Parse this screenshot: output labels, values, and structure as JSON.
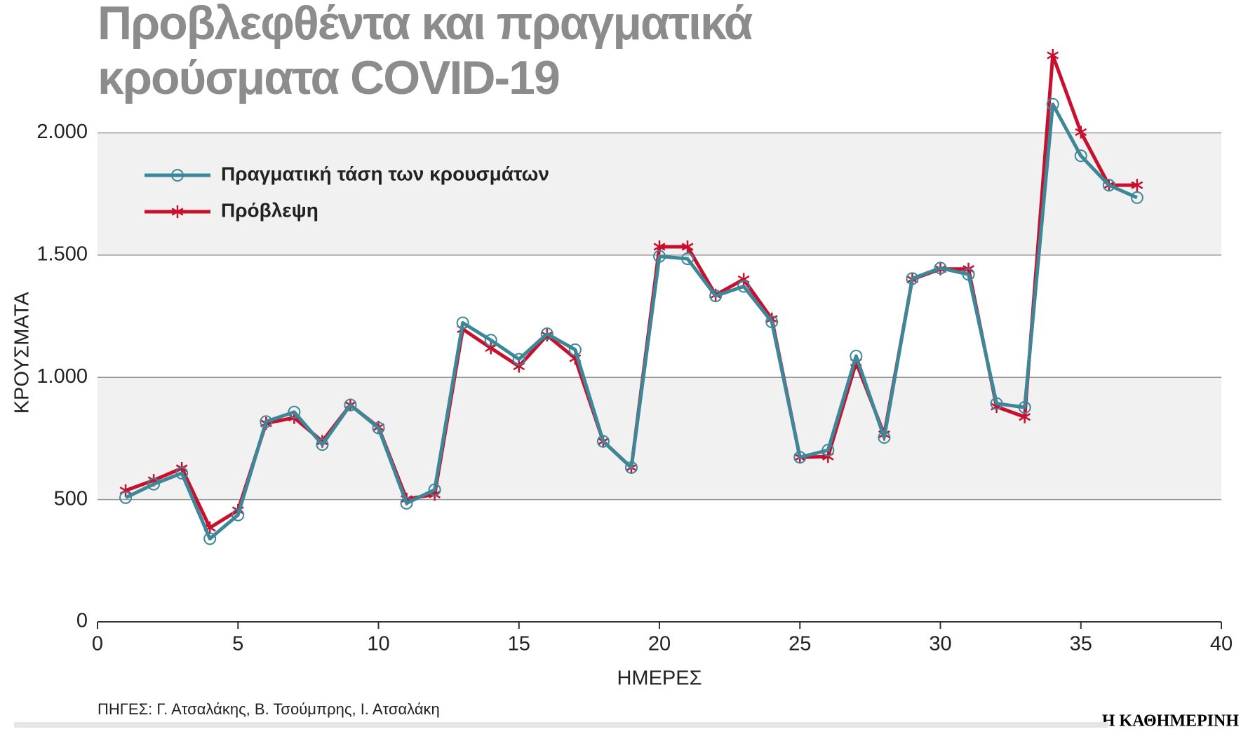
{
  "chart_data": {
    "type": "line",
    "title": "Προβλεφθέντα και πραγματικά κρούσματα COVID-19",
    "x_label": "ΗΜΕΡΕΣ",
    "y_label": "ΚΡΟΥΣΜΑΤΑ",
    "source": "ΠΗΓΕΣ: Γ. Ατσαλάκης, Β. Τσούμπρης, Ι. Ατσαλάκη",
    "brand": "Η ΚΑΘΗΜΕΡΙΝΗ",
    "x": [
      1,
      2,
      3,
      4,
      5,
      6,
      7,
      8,
      9,
      10,
      11,
      12,
      13,
      14,
      15,
      16,
      17,
      18,
      19,
      20,
      21,
      22,
      23,
      24,
      25,
      26,
      27,
      28,
      29,
      30,
      31,
      32,
      33,
      34,
      35,
      36,
      37
    ],
    "series": [
      {
        "name": "Πραγματική τάση των κρουσμάτων",
        "color": "#3d8799",
        "marker": "circle",
        "values": [
          508,
          563,
          608,
          340,
          437,
          819,
          858,
          725,
          887,
          793,
          485,
          540,
          1223,
          1152,
          1074,
          1178,
          1113,
          738,
          631,
          1495,
          1485,
          1333,
          1372,
          1227,
          673,
          702,
          1087,
          754,
          1404,
          1447,
          1421,
          893,
          877,
          2117,
          1906,
          1786,
          1735
        ]
      },
      {
        "name": "Πρόβλεψη",
        "color": "#c8102e",
        "marker": "star",
        "values": [
          537,
          579,
          628,
          385,
          456,
          812,
          835,
          738,
          887,
          796,
          502,
          521,
          1197,
          1120,
          1045,
          1172,
          1078,
          738,
          631,
          1534,
          1534,
          1337,
          1401,
          1239,
          673,
          676,
          1061,
          767,
          1401,
          1443,
          1443,
          880,
          838,
          2317,
          2003,
          1786,
          1786
        ]
      }
    ],
    "xlim": [
      0,
      40
    ],
    "xticks": [
      0,
      5,
      10,
      15,
      20,
      25,
      30,
      35,
      40
    ],
    "ylim": [
      0,
      2400
    ],
    "yticks": [
      0,
      500,
      {
        "value": 1000,
        "label": "1.000"
      },
      {
        "value": 1500,
        "label": "1.500"
      },
      {
        "value": 2000,
        "label": "2.000"
      }
    ],
    "grid": true,
    "bands": true
  }
}
